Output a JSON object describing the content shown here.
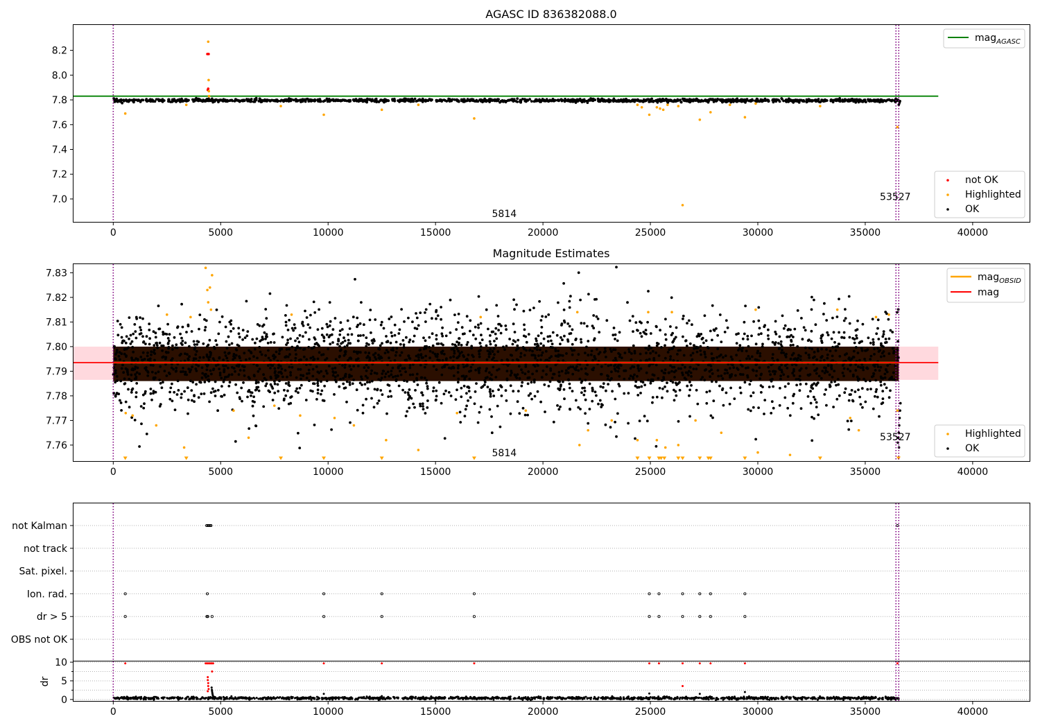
{
  "chart_data": [
    {
      "type": "scatter",
      "title": "AGASC ID 836382088.0",
      "xlabel": "",
      "ylabel": "",
      "xlim": [
        -1850,
        42650
      ],
      "ylim": [
        6.815,
        8.405
      ],
      "x_ticks": [
        0,
        5000,
        10000,
        15000,
        20000,
        25000,
        30000,
        35000,
        40000
      ],
      "y_ticks": [
        7.0,
        7.2,
        7.4,
        7.6,
        7.8,
        8.0,
        8.2
      ],
      "vlines": [
        {
          "x": 0,
          "color": "#800080",
          "style": "dotted"
        },
        {
          "x": 36430,
          "color": "#800080",
          "style": "dotted"
        },
        {
          "x": 36560,
          "color": "#800080",
          "style": "dotted"
        }
      ],
      "annotations": [
        {
          "text": "5814",
          "x": 18200,
          "y": 6.855
        },
        {
          "text": "53527",
          "x": 36400,
          "y": 6.99
        }
      ],
      "lines": [
        {
          "name": "mag_AGASC",
          "color": "#008000",
          "y": 7.83,
          "x": [
            -1850,
            38400
          ]
        }
      ],
      "bulk_band": {
        "x": [
          0,
          36560
        ],
        "center": 7.795,
        "halfwidth": 0.012,
        "color": "#000000"
      },
      "series": [
        {
          "name": "not OK",
          "color": "#ff0000",
          "points": [
            [
              4380,
              8.17
            ],
            [
              4400,
              7.88
            ],
            [
              4420,
              7.89
            ],
            [
              4440,
              8.17
            ]
          ]
        },
        {
          "name": "Highlighted",
          "color": "#ffa500",
          "points": [
            [
              4420,
              8.27
            ],
            [
              4440,
              7.96
            ],
            [
              4450,
              7.87
            ],
            [
              4460,
              7.83
            ],
            [
              560,
              7.69
            ],
            [
              3400,
              7.76
            ],
            [
              7800,
              7.75
            ],
            [
              9800,
              7.68
            ],
            [
              12500,
              7.72
            ],
            [
              14200,
              7.76
            ],
            [
              16800,
              7.65
            ],
            [
              24400,
              7.76
            ],
            [
              24600,
              7.74
            ],
            [
              24950,
              7.68
            ],
            [
              25300,
              7.74
            ],
            [
              25450,
              7.73
            ],
            [
              25600,
              7.72
            ],
            [
              25800,
              7.76
            ],
            [
              26300,
              7.75
            ],
            [
              26500,
              6.95
            ],
            [
              27300,
              7.64
            ],
            [
              27800,
              7.7
            ],
            [
              28700,
              7.76
            ],
            [
              29400,
              7.66
            ],
            [
              29900,
              7.77
            ],
            [
              32900,
              7.75
            ],
            [
              36500,
              7.58
            ]
          ]
        },
        {
          "name": "OK",
          "color": "#000000",
          "points": [
            [
              36560,
              7.76
            ],
            [
              36580,
              7.77
            ],
            [
              36600,
              7.78
            ],
            [
              36620,
              7.79
            ],
            [
              4600,
              7.81
            ],
            [
              4640,
              7.78
            ]
          ]
        }
      ],
      "legends": [
        {
          "position": "upper-right",
          "entries": [
            {
              "label": "mag",
              "sub": "AGASC",
              "kind": "line",
              "color": "#008000"
            }
          ]
        },
        {
          "position": "lower-right",
          "entries": [
            {
              "label": "not OK",
              "kind": "dot",
              "color": "#ff0000"
            },
            {
              "label": "Highlighted",
              "kind": "dot",
              "color": "#ffa500"
            },
            {
              "label": "OK",
              "kind": "dot",
              "color": "#000000"
            }
          ]
        }
      ]
    },
    {
      "type": "scatter",
      "title": "Magnitude Estimates",
      "xlabel": "",
      "ylabel": "",
      "xlim": [
        -1850,
        42650
      ],
      "ylim": [
        7.7535,
        7.8335
      ],
      "x_ticks": [
        0,
        5000,
        10000,
        15000,
        20000,
        25000,
        30000,
        35000,
        40000
      ],
      "y_ticks": [
        7.76,
        7.77,
        7.78,
        7.79,
        7.8,
        7.81,
        7.82,
        7.83
      ],
      "vlines": [
        {
          "x": 0,
          "color": "#800080",
          "style": "dotted"
        },
        {
          "x": 36430,
          "color": "#800080",
          "style": "dotted"
        },
        {
          "x": 36560,
          "color": "#800080",
          "style": "dotted"
        }
      ],
      "annotations": [
        {
          "text": "5814",
          "x": 18200,
          "y": 7.7555
        },
        {
          "text": "53527",
          "x": 36400,
          "y": 7.762
        }
      ],
      "shaded_band": {
        "x": [
          -1850,
          38400
        ],
        "y": [
          7.7865,
          7.8
        ],
        "color": "#ffc0c8"
      },
      "lines": [
        {
          "name": "mag_OBSID",
          "color": "#ffa500",
          "y": 7.7935,
          "x": [
            0,
            36560
          ]
        },
        {
          "name": "mag",
          "color": "#ff0000",
          "y": 7.7935,
          "x": [
            -1850,
            38400
          ]
        }
      ],
      "bulk_band": {
        "x": [
          0,
          36560
        ],
        "center": 7.7935,
        "halfwidth": 0.0205,
        "color": "#000000"
      },
      "series": [
        {
          "name": "Highlighted",
          "color": "#ffa500",
          "points": [
            [
              580,
              7.773
            ],
            [
              900,
              7.772
            ],
            [
              2000,
              7.768
            ],
            [
              2500,
              7.813
            ],
            [
              3300,
              7.759
            ],
            [
              3600,
              7.812
            ],
            [
              4300,
              7.832
            ],
            [
              4380,
              7.823
            ],
            [
              4420,
              7.818
            ],
            [
              4500,
              7.824
            ],
            [
              4550,
              7.815
            ],
            [
              4600,
              7.829
            ],
            [
              5600,
              7.774
            ],
            [
              6300,
              7.763
            ],
            [
              7500,
              7.776
            ],
            [
              8300,
              7.813
            ],
            [
              8700,
              7.772
            ],
            [
              10300,
              7.771
            ],
            [
              11200,
              7.768
            ],
            [
              12700,
              7.762
            ],
            [
              14200,
              7.758
            ],
            [
              16000,
              7.773
            ],
            [
              17100,
              7.812
            ],
            [
              19200,
              7.774
            ],
            [
              21600,
              7.814
            ],
            [
              21700,
              7.76
            ],
            [
              22100,
              7.766
            ],
            [
              23200,
              7.77
            ],
            [
              24400,
              7.762
            ],
            [
              24900,
              7.814
            ],
            [
              25300,
              7.762
            ],
            [
              25700,
              7.759
            ],
            [
              26000,
              7.814
            ],
            [
              26300,
              7.76
            ],
            [
              27100,
              7.77
            ],
            [
              28300,
              7.765
            ],
            [
              29900,
              7.815
            ],
            [
              30000,
              7.757
            ],
            [
              31500,
              7.756
            ],
            [
              33700,
              7.815
            ],
            [
              34300,
              7.771
            ],
            [
              34700,
              7.766
            ],
            [
              35500,
              7.812
            ],
            [
              36100,
              7.813
            ],
            [
              36500,
              7.774
            ]
          ]
        },
        {
          "name": "OK",
          "color": "#000000",
          "points": [
            [
              36540,
              7.763
            ],
            [
              36560,
              7.765
            ],
            [
              36580,
              7.768
            ],
            [
              36600,
              7.771
            ],
            [
              36620,
              7.774
            ],
            [
              36640,
              7.777
            ],
            [
              36520,
              7.761
            ],
            [
              36570,
              7.759
            ]
          ]
        }
      ],
      "offscale_markers": {
        "y": 7.7545,
        "color": "#ffa500",
        "x": [
          560,
          3400,
          7800,
          9800,
          12500,
          16800,
          24400,
          24950,
          25400,
          25500,
          25650,
          26300,
          26500,
          27300,
          27700,
          27800,
          29400,
          32900,
          36550
        ]
      },
      "legends": [
        {
          "position": "upper-right",
          "entries": [
            {
              "label": "mag",
              "sub": "OBSID",
              "kind": "line",
              "color": "#ffa500"
            },
            {
              "label": "mag",
              "kind": "line",
              "color": "#ff0000"
            }
          ]
        },
        {
          "position": "lower-right",
          "entries": [
            {
              "label": "Highlighted",
              "kind": "dot",
              "color": "#ffa500"
            },
            {
              "label": "OK",
              "kind": "dot",
              "color": "#000000"
            }
          ]
        }
      ]
    },
    {
      "type": "scatter",
      "title": "",
      "xlabel": "",
      "ylabel": "",
      "xlim": [
        -1850,
        42650
      ],
      "y_ticks": [
        "not Kalman",
        "not track",
        "Sat. pixel.",
        "Ion. rad.",
        "dr > 5",
        "OBS not OK"
      ],
      "vlines": [
        {
          "x": 0,
          "color": "#800080",
          "style": "dotted"
        },
        {
          "x": 36430,
          "color": "#800080",
          "style": "dotted"
        },
        {
          "x": 36560,
          "color": "#800080",
          "style": "dotted"
        }
      ],
      "flag_points": {
        "not Kalman": [
          4350,
          4400,
          4450,
          4500,
          4550,
          36500
        ],
        "not track": [],
        "Sat. pixel.": [],
        "Ion. rad.": [
          560,
          4380,
          9800,
          12500,
          16800,
          24950,
          25400,
          26500,
          27300,
          27800,
          29400
        ],
        "dr > 5": [
          560,
          4360,
          4400,
          4600,
          9800,
          12500,
          16800,
          24950,
          25400,
          26500,
          27300,
          27800,
          29400
        ],
        "OBS not OK": []
      }
    },
    {
      "type": "scatter",
      "title": "",
      "xlabel": "",
      "ylabel": "dr",
      "xlim": [
        -1850,
        42650
      ],
      "ylim": [
        -0.4,
        10.2
      ],
      "x_ticks": [
        0,
        5000,
        10000,
        15000,
        20000,
        25000,
        30000,
        35000,
        40000
      ],
      "y_ticks": [
        0,
        5,
        10
      ],
      "minor_y_ticks": [
        2.5,
        7.5
      ],
      "vlines": [
        {
          "x": 0,
          "color": "#800080",
          "style": "dotted"
        },
        {
          "x": 36430,
          "color": "#800080",
          "style": "dotted"
        },
        {
          "x": 36560,
          "color": "#800080",
          "style": "dotted"
        }
      ],
      "bulk_band": {
        "x": [
          0,
          36560
        ],
        "center": 0.35,
        "halfwidth": 0.35,
        "color": "#000000"
      },
      "series": [
        {
          "name": "not OK",
          "color": "#ff0000",
          "points": [
            [
              560,
              9.7
            ],
            [
              4300,
              9.7
            ],
            [
              4350,
              9.7
            ],
            [
              4400,
              9.7
            ],
            [
              4450,
              9.7
            ],
            [
              4500,
              9.7
            ],
            [
              4550,
              9.7
            ],
            [
              4600,
              9.7
            ],
            [
              4650,
              9.7
            ],
            [
              4400,
              6
            ],
            [
              4400,
              5.2
            ],
            [
              4420,
              4.4
            ],
            [
              4420,
              3.6
            ],
            [
              4440,
              2.8
            ],
            [
              4400,
              2.2
            ],
            [
              4600,
              7.5
            ],
            [
              9800,
              9.7
            ],
            [
              12500,
              9.7
            ],
            [
              16800,
              9.7
            ],
            [
              24950,
              9.7
            ],
            [
              25400,
              9.7
            ],
            [
              26500,
              9.7
            ],
            [
              26500,
              3.6
            ],
            [
              27300,
              9.7
            ],
            [
              27800,
              9.7
            ],
            [
              29400,
              9.7
            ],
            [
              36500,
              9.7
            ]
          ]
        },
        {
          "name": "OK",
          "color": "#000000",
          "points": [
            [
              4580,
              3.2
            ],
            [
              4590,
              2.6
            ],
            [
              4600,
              2.2
            ],
            [
              4610,
              1.8
            ],
            [
              4620,
              1.5
            ],
            [
              4630,
              1.2
            ],
            [
              4640,
              1.0
            ],
            [
              9800,
              1.5
            ],
            [
              24950,
              1.6
            ],
            [
              27300,
              1.5
            ],
            [
              29400,
              2.0
            ],
            [
              12500,
              0.9
            ],
            [
              19800,
              0.8
            ]
          ]
        }
      ]
    }
  ]
}
